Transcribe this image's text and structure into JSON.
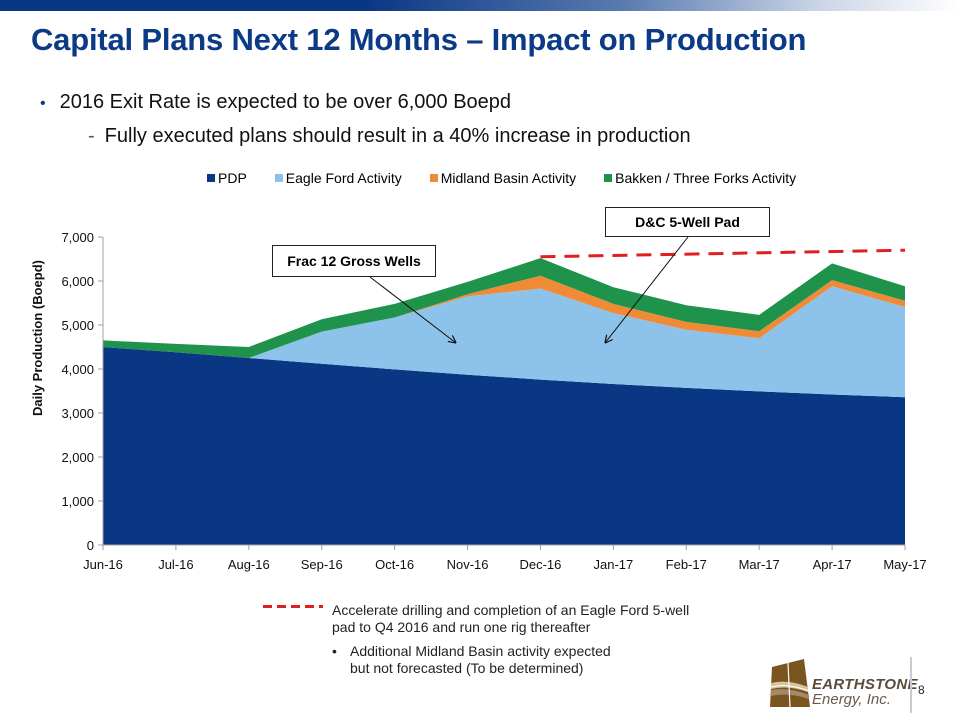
{
  "slide": {
    "title": "Capital Plans Next 12 Months – Impact on Production",
    "bullets": [
      {
        "marker": "•",
        "text": "2016 Exit Rate is expected to be over 6,000 Boepd"
      },
      {
        "marker": "-",
        "text": "Fully executed plans should result in a 40% increase in production"
      }
    ],
    "footer_notes": {
      "dashed_line_note": "Accelerate drilling and completion of an Eagle Ford 5-well pad to Q4 2016 and run one rig thereafter",
      "bullet_marker": "•",
      "bullet_note": "Additional Midland Basin activity expected but not forecasted (To be determined)"
    },
    "logo": {
      "line1": "EARTHSTONE",
      "line2": "Energy, Inc."
    },
    "page_number": "8",
    "colors": {
      "title": "#0b3a86",
      "pdp": "#0a3784",
      "eagle_ford": "#8dc3ea",
      "midland": "#ef8a37",
      "bakken": "#1f934b",
      "target_line": "#e02020"
    }
  },
  "chart_data": {
    "type": "area",
    "stacked": true,
    "title": "",
    "xlabel": "",
    "ylabel": "Daily Production (Boepd)",
    "ylim": [
      0,
      7000
    ],
    "yticks": [
      0,
      1000,
      2000,
      3000,
      4000,
      5000,
      6000,
      7000
    ],
    "ytick_labels": [
      "0",
      "1,000",
      "2,000",
      "3,000",
      "4,000",
      "5,000",
      "6,000",
      "7,000"
    ],
    "grid": false,
    "legend_position": "top",
    "categories": [
      "Jun-16",
      "Jul-16",
      "Aug-16",
      "Sep-16",
      "Oct-16",
      "Nov-16",
      "Dec-16",
      "Jan-17",
      "Feb-17",
      "Mar-17",
      "Apr-17",
      "May-17"
    ],
    "series": [
      {
        "name": "PDP",
        "color": "#0a3784",
        "values": [
          4500,
          4380,
          4250,
          4120,
          3990,
          3870,
          3760,
          3660,
          3570,
          3490,
          3420,
          3360
        ]
      },
      {
        "name": "Eagle Ford Activity",
        "color": "#8dc3ea",
        "values": [
          0,
          0,
          0,
          730,
          1180,
          1780,
          2070,
          1610,
          1320,
          1210,
          2460,
          2050
        ]
      },
      {
        "name": "Midland Basin Activity",
        "color": "#ef8a37",
        "values": [
          0,
          0,
          0,
          0,
          0,
          50,
          290,
          210,
          180,
          160,
          140,
          140
        ]
      },
      {
        "name": "Bakken / Three Forks Activity",
        "color": "#1f934b",
        "values": [
          150,
          190,
          250,
          280,
          310,
          280,
          400,
          380,
          380,
          370,
          380,
          330
        ]
      }
    ],
    "target_line": {
      "style": "dashed",
      "color": "#e02020",
      "start_category": "Dec-16",
      "end_category": "May-17",
      "start_value": 6550,
      "end_value": 6700
    },
    "annotations": [
      {
        "text": "Frac 12 Gross Wells",
        "points_to_category": "Nov-16",
        "points_to_value": 4600
      },
      {
        "text": "D&C 5-Well Pad",
        "points_to_category": "Jan-17",
        "points_to_value": 4600
      }
    ]
  }
}
